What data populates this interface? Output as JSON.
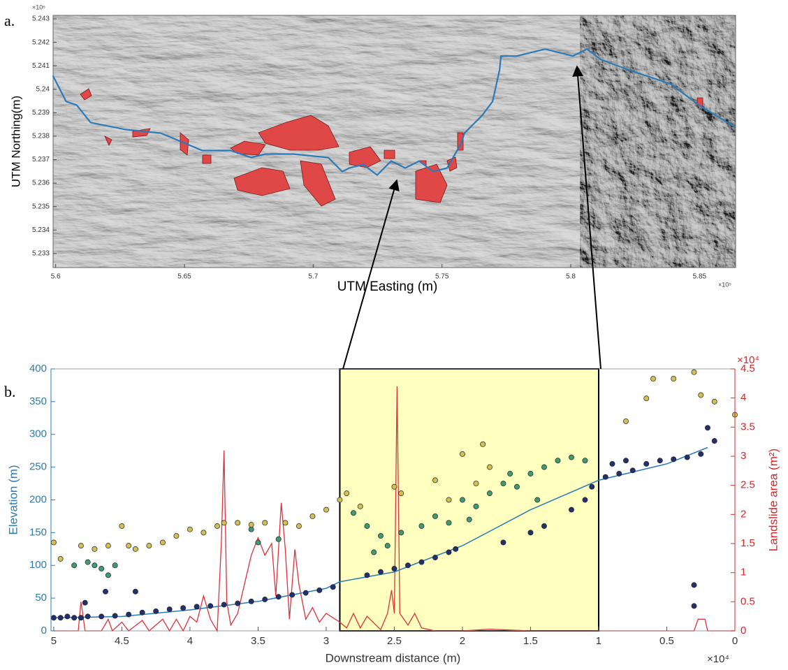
{
  "chart_data": [
    {
      "type": "map",
      "panel_label": "a.",
      "xlabel": "UTM Easting (m)",
      "ylabel": "UTM Northing(m)",
      "x_exponent": "×10⁵",
      "y_exponent": "×10⁶",
      "xlim": [
        559900,
        586400
      ],
      "ylim": [
        5232400,
        5243150
      ],
      "xticks": [
        {
          "value": 560000,
          "label": "5.6"
        },
        {
          "value": 565000,
          "label": "5.65"
        },
        {
          "value": 570000,
          "label": "5.7"
        },
        {
          "value": 575000,
          "label": "5.75"
        },
        {
          "value": 580000,
          "label": "5.8"
        },
        {
          "value": 585000,
          "label": "5.85"
        }
      ],
      "yticks": [
        {
          "value": 5233000,
          "label": "5.233"
        },
        {
          "value": 5234000,
          "label": "5.234"
        },
        {
          "value": 5235000,
          "label": "5.235"
        },
        {
          "value": 5236000,
          "label": "5.236"
        },
        {
          "value": 5237000,
          "label": "5.237"
        },
        {
          "value": 5238000,
          "label": "5.238"
        },
        {
          "value": 5239000,
          "label": "5.239"
        },
        {
          "value": 5240000,
          "label": "5.24"
        },
        {
          "value": 5241000,
          "label": "5.241"
        },
        {
          "value": 5242000,
          "label": "5.242"
        },
        {
          "value": 5243000,
          "label": "5.243"
        }
      ],
      "series": [
        {
          "color": "#2b7bb9",
          "x": [
            559891,
            560407,
            560814,
            561357,
            562714,
            564071,
            565699,
            566785,
            567599,
            568142,
            569228,
            570585,
            571127,
            571399,
            571942,
            572484,
            573027,
            573570,
            574113,
            574656,
            575198,
            575741,
            575877,
            576555,
            576963,
            577234,
            577289,
            577913,
            578455,
            578998,
            579541,
            580084,
            580626,
            581169,
            582255,
            583883,
            584969,
            586390
          ],
          "values": [
            5240582,
            5239478,
            5239328,
            5238582,
            5238284,
            5238134,
            5237388,
            5237388,
            5237090,
            5237239,
            5237239,
            5237090,
            5236493,
            5236642,
            5236791,
            5236343,
            5236940,
            5236642,
            5236940,
            5236493,
            5236642,
            5237687,
            5238134,
            5238881,
            5239478,
            5240821,
            5241418,
            5241418,
            5241567,
            5241716,
            5241567,
            5241418,
            5241716,
            5241269,
            5240821,
            5240224,
            5239328,
            5238373
          ]
        }
      ]
    },
    {
      "type": "scatter",
      "panel_label": "b.",
      "xlabel": "Downstream distance (m)",
      "ylabel": "Elevation (m)",
      "y2label": "Landslide area (m²)",
      "x_exponent": "×10⁴",
      "y2_exponent": "×10⁴",
      "ycolor": "#2a7ab0",
      "y2color": "#d62728",
      "highlight": {
        "xlim": [
          29000,
          10000
        ],
        "color": "#ffffc0"
      },
      "xlim": [
        50200,
        0
      ],
      "ylim": [
        0,
        400
      ],
      "y2lim": [
        0,
        45000
      ],
      "xticks": [
        {
          "value": 50000,
          "label": "5"
        },
        {
          "value": 45000,
          "label": "4.5"
        },
        {
          "value": 40000,
          "label": "4"
        },
        {
          "value": 35000,
          "label": "3.5"
        },
        {
          "value": 30000,
          "label": "3"
        },
        {
          "value": 25000,
          "label": "2.5"
        },
        {
          "value": 20000,
          "label": "2"
        },
        {
          "value": 15000,
          "label": "1.5"
        },
        {
          "value": 10000,
          "label": "1"
        },
        {
          "value": 5000,
          "label": "0.5"
        },
        0
      ],
      "yticks": [
        0,
        50,
        100,
        150,
        200,
        250,
        300,
        350,
        400
      ],
      "y2ticks": [
        0,
        {
          "value": 5000,
          "label": "0.5"
        },
        {
          "value": 10000,
          "label": "1"
        },
        {
          "value": 15000,
          "label": "1.5"
        },
        {
          "value": 20000,
          "label": "2"
        },
        {
          "value": 25000,
          "label": "2.5"
        },
        {
          "value": 30000,
          "label": "3"
        },
        {
          "value": 35000,
          "label": "3.5"
        },
        {
          "value": 40000,
          "label": "4"
        },
        {
          "value": 45000,
          "label": "4.5"
        }
      ],
      "series": [
        {
          "type": "line",
          "axis": "y2",
          "color": "#e0303a",
          "x": [
            50000,
            49000,
            48200,
            48000,
            47700,
            47000,
            46500,
            46000,
            45700,
            45000,
            44500,
            43500,
            43000,
            42000,
            41500,
            41000,
            40500,
            40000,
            39500,
            39000,
            38500,
            38000,
            37700,
            37500,
            37300,
            37000,
            36500,
            36000,
            35500,
            35000,
            34500,
            34000,
            33700,
            33300,
            33000,
            32700,
            32300,
            32000,
            31500,
            31000,
            30500,
            30000,
            29000,
            28500,
            28000,
            27500,
            27000,
            26000,
            25500,
            25200,
            25000,
            24800,
            24600,
            24000,
            23500,
            23000,
            22000,
            20000,
            18000,
            15000,
            10000,
            3000,
            2700,
            2200,
            2000,
            0
          ],
          "values": [
            0,
            0,
            0,
            5000,
            0,
            0,
            0,
            2000,
            0,
            1500,
            0,
            1800,
            0,
            2000,
            0,
            2000,
            0,
            2500,
            1500,
            6000,
            2000,
            0,
            15000,
            31000,
            5000,
            1000,
            3000,
            8000,
            13000,
            16000,
            13000,
            15000,
            6000,
            22000,
            14000,
            2000,
            14000,
            8000,
            2000,
            4000,
            1500,
            3000,
            1500,
            500,
            3000,
            500,
            2500,
            200,
            3000,
            7000,
            3000,
            42000,
            3000,
            1000,
            3000,
            500,
            0,
            0,
            300,
            0,
            0,
            0,
            2000,
            2000,
            0,
            0
          ]
        },
        {
          "type": "line",
          "color": "#2b7bb9",
          "x": [
            50000,
            45000,
            40000,
            35000,
            30000,
            29000,
            25000,
            20000,
            15000,
            10000,
            5000,
            2000
          ],
          "values": [
            20,
            22,
            32,
            45,
            65,
            75,
            90,
            130,
            185,
            230,
            255,
            280
          ]
        },
        {
          "type": "scatter",
          "color": "#23306e",
          "x": [
            50000,
            49500,
            49000,
            48500,
            48000,
            47500,
            46500,
            45500,
            44500,
            43500,
            42500,
            41500,
            40500,
            39500,
            38500,
            37500,
            36500,
            35500,
            34500,
            33500,
            32500,
            31500,
            30500,
            29500,
            46200,
            44000,
            47700,
            26000,
            25000,
            24000,
            23000,
            22000,
            21000,
            20500,
            27000,
            17000,
            15000,
            14000,
            12000,
            11000,
            10500,
            9500,
            8500,
            7500,
            6500,
            5500,
            4500,
            3500,
            2500,
            1500,
            3000,
            3000,
            9000,
            8000,
            2000
          ],
          "values": [
            20,
            20,
            22,
            20,
            20,
            22,
            22,
            23,
            25,
            28,
            30,
            33,
            35,
            37,
            38,
            40,
            42,
            45,
            48,
            52,
            55,
            58,
            62,
            67,
            60,
            60,
            43,
            90,
            95,
            100,
            105,
            112,
            120,
            125,
            85,
            135,
            150,
            160,
            185,
            200,
            220,
            235,
            240,
            245,
            255,
            260,
            262,
            265,
            270,
            290,
            70,
            38,
            255,
            260,
            310
          ]
        },
        {
          "type": "scatter",
          "color": "#3e9b72",
          "x": [
            48500,
            47500,
            47000,
            46500,
            46000,
            45500,
            35500,
            35000,
            33500,
            28000,
            27000,
            26000,
            25500,
            24500,
            23000,
            22000,
            21000,
            20000,
            19000,
            18000,
            17000,
            16000,
            15000,
            14000,
            13000,
            12000,
            11000,
            16500,
            14500,
            19500,
            26500
          ],
          "values": [
            100,
            105,
            100,
            95,
            85,
            100,
            155,
            135,
            140,
            180,
            160,
            145,
            130,
            150,
            160,
            175,
            165,
            200,
            190,
            210,
            225,
            220,
            240,
            250,
            260,
            265,
            260,
            240,
            200,
            170,
            120
          ]
        },
        {
          "type": "scatter",
          "color": "#d2bf55",
          "x": [
            50000,
            49500,
            48000,
            47000,
            46000,
            45000,
            44500,
            44000,
            43000,
            42000,
            41000,
            40000,
            39000,
            38000,
            37500,
            36500,
            35500,
            34500,
            33000,
            32000,
            31000,
            30000,
            29000,
            28500,
            27500,
            25000,
            24500,
            22000,
            21000,
            19000,
            18500,
            18000,
            20000,
            6000,
            4500,
            3000,
            2500,
            6500,
            8000,
            0,
            1500
          ],
          "values": [
            135,
            110,
            130,
            125,
            130,
            160,
            130,
            125,
            130,
            135,
            145,
            155,
            150,
            160,
            165,
            165,
            162,
            165,
            165,
            160,
            175,
            185,
            200,
            210,
            190,
            220,
            210,
            230,
            200,
            225,
            285,
            250,
            270,
            385,
            385,
            395,
            360,
            355,
            320,
            330,
            350
          ]
        }
      ]
    }
  ]
}
